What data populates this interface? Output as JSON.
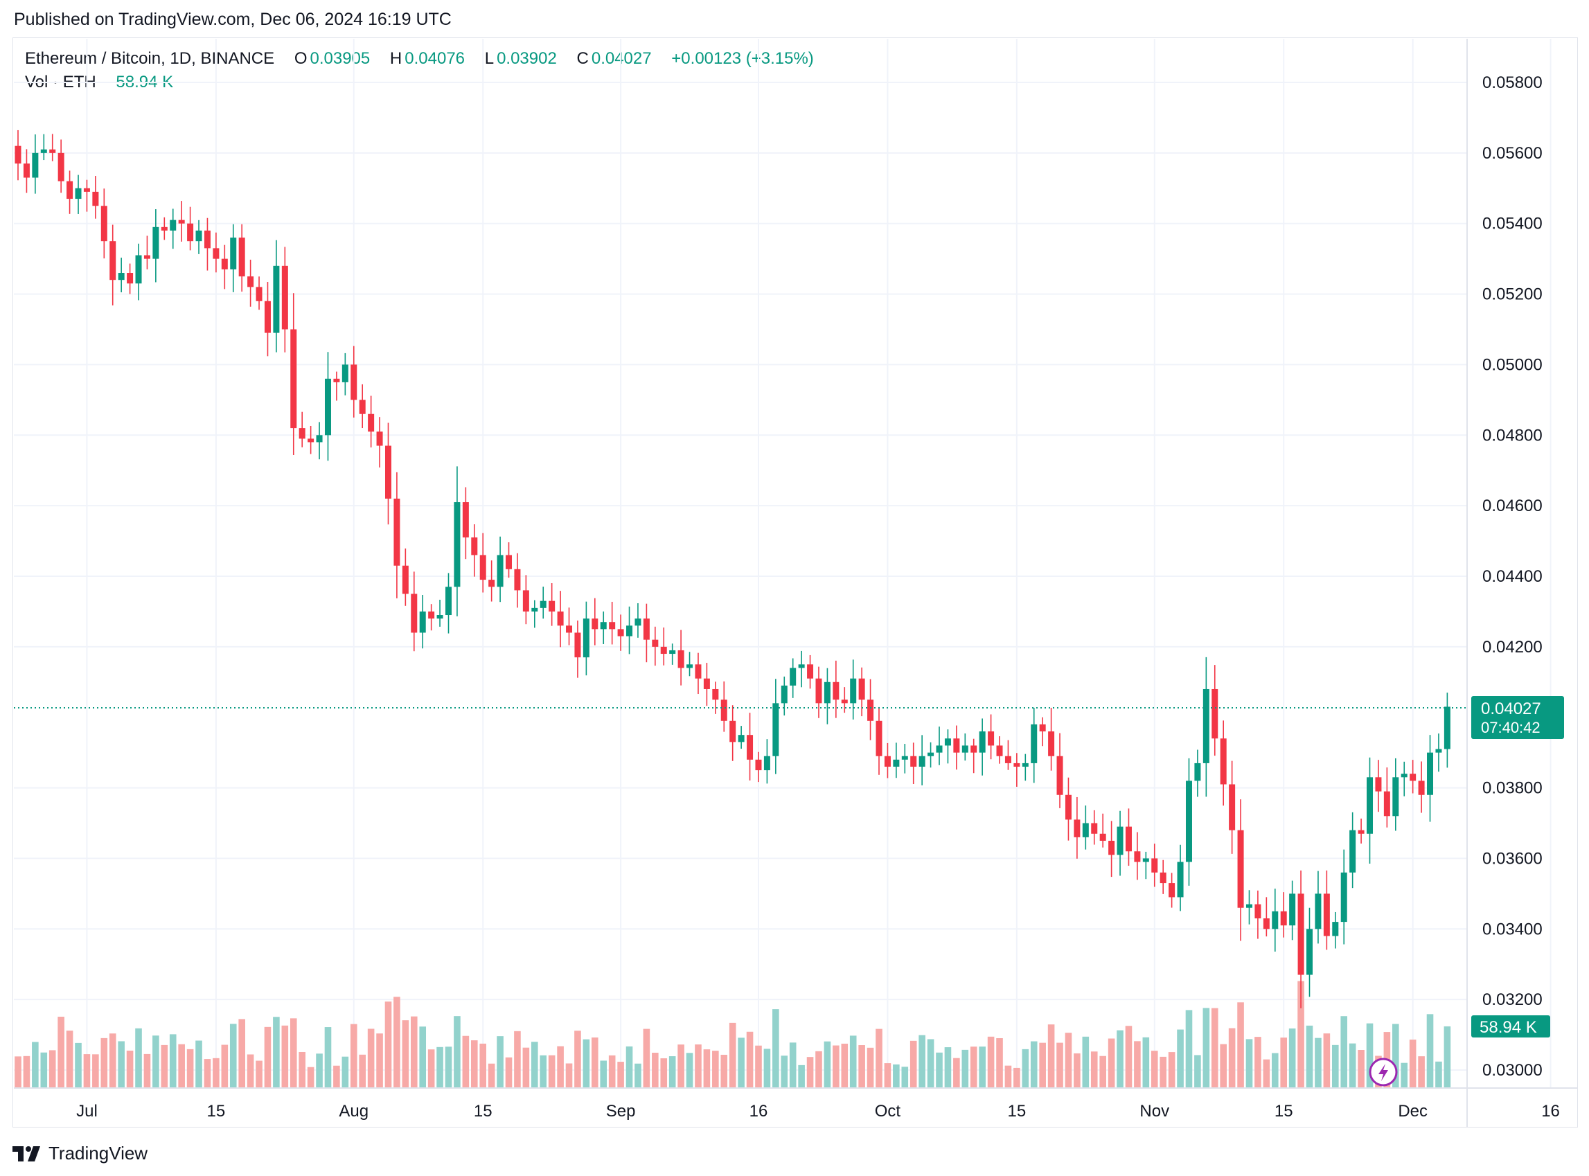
{
  "header": {
    "published": "Published on TradingView.com, Dec 06, 2024 16:19 UTC"
  },
  "legend": {
    "symbol": "Ethereum / Bitcoin, 1D, BINANCE",
    "o_label": "O",
    "o_value": "0.03905",
    "h_label": "H",
    "h_value": "0.04076",
    "l_label": "L",
    "l_value": "0.03902",
    "c_label": "C",
    "c_value": "0.04027",
    "change": "+0.00123 (+3.15%)",
    "vol_label": "Vol · ETH",
    "vol_value": "58.94 K"
  },
  "price_badge": {
    "price": "0.04027",
    "countdown": "07:40:42"
  },
  "volume_badge": "58.94 K",
  "brand": "TradingView",
  "colors": {
    "up": "#089981",
    "down": "#f23645",
    "up_vol": "#92d2cc",
    "down_vol": "#f7a9a7",
    "grid": "#f0f3fa"
  },
  "chart_data": {
    "type": "candlestick",
    "title": "Ethereum / Bitcoin, 1D, BINANCE",
    "y_ticks": [
      "0.05800",
      "0.05600",
      "0.05400",
      "0.05200",
      "0.05000",
      "0.04800",
      "0.04600",
      "0.04400",
      "0.04200",
      "0.03800",
      "0.03600",
      "0.03400",
      "0.03200",
      "0.03000"
    ],
    "x_ticks": [
      "Jul",
      "15",
      "Aug",
      "15",
      "Sep",
      "16",
      "Oct",
      "15",
      "Nov",
      "15",
      "Dec",
      "16"
    ],
    "ylim": [
      0.0288,
      0.059
    ],
    "last_price": 0.04027,
    "closes": [
      0.0557,
      0.0553,
      0.056,
      0.0561,
      0.056,
      0.0552,
      0.0547,
      0.055,
      0.0549,
      0.0545,
      0.0535,
      0.0524,
      0.0526,
      0.0523,
      0.0531,
      0.053,
      0.0539,
      0.0538,
      0.0541,
      0.054,
      0.0535,
      0.0538,
      0.0533,
      0.053,
      0.0527,
      0.0536,
      0.0525,
      0.0522,
      0.0518,
      0.0509,
      0.0528,
      0.051,
      0.0482,
      0.0479,
      0.0478,
      0.048,
      0.0496,
      0.0495,
      0.05,
      0.049,
      0.0486,
      0.0481,
      0.0477,
      0.0462,
      0.0443,
      0.0435,
      0.0424,
      0.043,
      0.0428,
      0.0429,
      0.0437,
      0.0461,
      0.0451,
      0.0446,
      0.0439,
      0.0437,
      0.0446,
      0.0442,
      0.0436,
      0.043,
      0.0431,
      0.0433,
      0.043,
      0.0426,
      0.0424,
      0.0417,
      0.0428,
      0.0425,
      0.0427,
      0.0425,
      0.0423,
      0.0426,
      0.0428,
      0.0422,
      0.042,
      0.0418,
      0.0419,
      0.0414,
      0.0415,
      0.0411,
      0.0408,
      0.0405,
      0.0399,
      0.0393,
      0.0395,
      0.0388,
      0.0385,
      0.0389,
      0.0404,
      0.0409,
      0.0414,
      0.0415,
      0.0411,
      0.0404,
      0.041,
      0.0405,
      0.0404,
      0.0411,
      0.0405,
      0.0399,
      0.0389,
      0.0386,
      0.0388,
      0.0389,
      0.0386,
      0.0389,
      0.039,
      0.0392,
      0.0394,
      0.039,
      0.0392,
      0.039,
      0.0396,
      0.0392,
      0.0389,
      0.0387,
      0.0386,
      0.0387,
      0.0398,
      0.0396,
      0.0389,
      0.0378,
      0.0371,
      0.0366,
      0.037,
      0.0367,
      0.0365,
      0.0361,
      0.0369,
      0.0362,
      0.0359,
      0.036,
      0.0356,
      0.0353,
      0.0349,
      0.0359,
      0.0382,
      0.0387,
      0.0408,
      0.0394,
      0.0381,
      0.0368,
      0.0346,
      0.0347,
      0.0343,
      0.034,
      0.0345,
      0.0341,
      0.035,
      0.0327,
      0.034,
      0.035,
      0.0338,
      0.0342,
      0.0356,
      0.0368,
      0.0367,
      0.0383,
      0.0379,
      0.0372,
      0.0383,
      0.0384,
      0.0382,
      0.0378,
      0.039,
      0.0391,
      0.0403
    ]
  }
}
